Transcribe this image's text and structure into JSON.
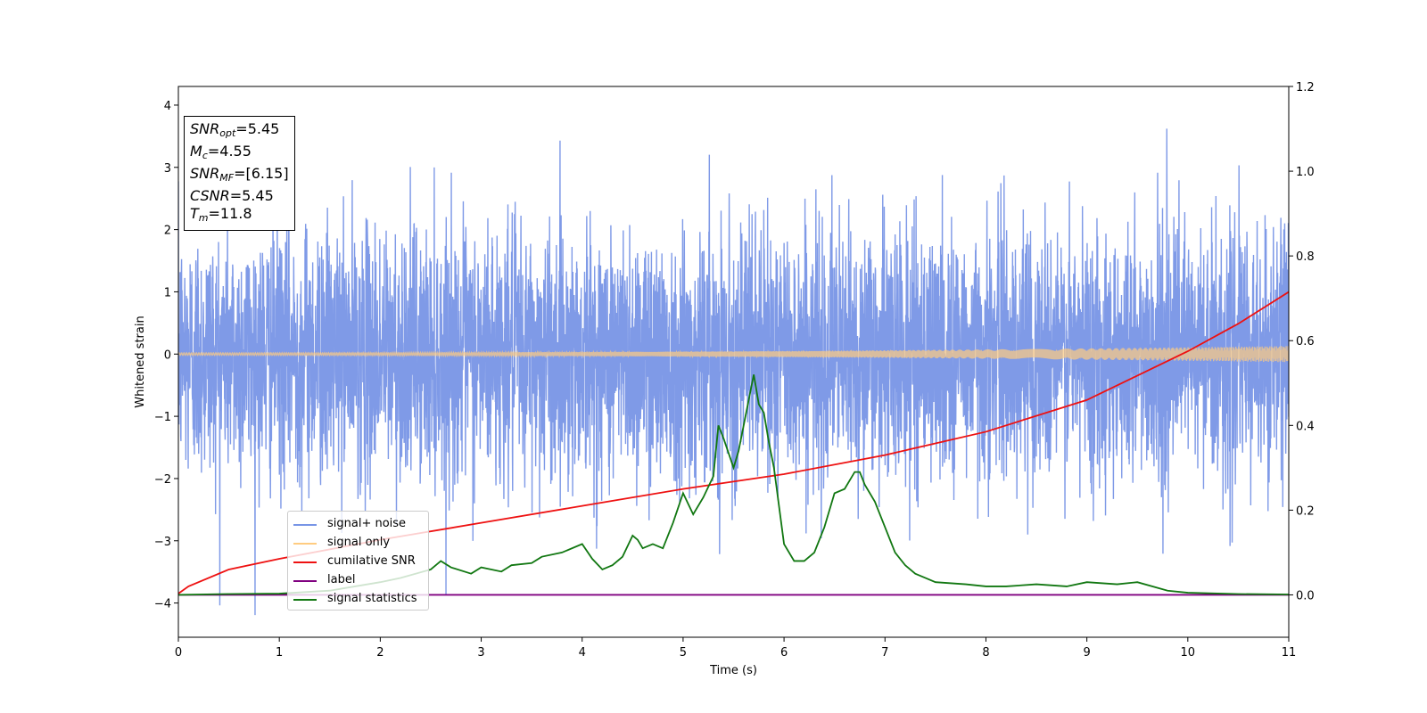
{
  "chart_data": {
    "type": "line",
    "xlabel": "Time (s)",
    "ylabel": "Whitened strain",
    "xlim": [
      0,
      11
    ],
    "ylim": [
      -4.55,
      4.3
    ],
    "y2lim": [
      -0.1,
      1.2
    ],
    "x_ticks": [
      "0",
      "1",
      "2",
      "3",
      "4",
      "5",
      "6",
      "7",
      "8",
      "9",
      "10",
      "11"
    ],
    "y_ticks": [
      "−4",
      "−3",
      "−2",
      "−1",
      "0",
      "1",
      "2",
      "3",
      "4"
    ],
    "y2_ticks": [
      "0.0",
      "0.2",
      "0.4",
      "0.6",
      "0.8",
      "1.0",
      "1.2"
    ],
    "annotation": {
      "snr_opt": {
        "label": "SNR",
        "sub": "opt",
        "value": "=5.45"
      },
      "mc": {
        "label": "M",
        "sub": "c",
        "value": "=4.55"
      },
      "snr_mf": {
        "label": "SNR",
        "sub": "MF",
        "value": "=[6.15]"
      },
      "csnr": {
        "label": "CSNR",
        "value": "=5.45"
      },
      "tm": {
        "label": "T",
        "sub": "m",
        "value": "=11.8"
      }
    },
    "series": [
      {
        "name": "signal+ noise",
        "axis": "left",
        "color": "#7895e6",
        "kind": "noise",
        "spread_sigma": 1.0,
        "peak_max": 3.9,
        "peak_min": -4.2
      },
      {
        "name": "signal only",
        "axis": "left",
        "color": "#ffcc80",
        "kind": "chirp",
        "amplitude_start": 0.02,
        "amplitude_end": 0.13
      },
      {
        "name": "cumilative SNR",
        "axis": "right",
        "color": "#ee1111",
        "x": [
          0,
          0.1,
          0.5,
          1,
          2,
          3,
          4,
          5,
          6,
          7,
          8,
          9,
          10,
          10.5,
          11
        ],
        "y": [
          0.003,
          0.02,
          0.06,
          0.085,
          0.13,
          0.17,
          0.21,
          0.25,
          0.285,
          0.33,
          0.385,
          0.46,
          0.575,
          0.64,
          0.715
        ]
      },
      {
        "name": "label",
        "axis": "right",
        "color": "#800080",
        "x": [
          0,
          11
        ],
        "y": [
          0,
          0
        ]
      },
      {
        "name": "signal statistics",
        "axis": "right",
        "color": "#117711",
        "x": [
          0,
          0.5,
          1,
          1.5,
          2,
          2.2,
          2.5,
          2.6,
          2.7,
          2.9,
          3.0,
          3.2,
          3.3,
          3.5,
          3.6,
          3.8,
          4.0,
          4.1,
          4.2,
          4.3,
          4.4,
          4.5,
          4.55,
          4.6,
          4.7,
          4.8,
          4.9,
          5.0,
          5.1,
          5.2,
          5.3,
          5.35,
          5.4,
          5.5,
          5.55,
          5.6,
          5.7,
          5.75,
          5.8,
          5.85,
          5.9,
          6.0,
          6.1,
          6.2,
          6.3,
          6.4,
          6.5,
          6.6,
          6.7,
          6.75,
          6.8,
          6.9,
          7.0,
          7.1,
          7.2,
          7.3,
          7.4,
          7.5,
          7.8,
          8.0,
          8.2,
          8.5,
          8.8,
          9.0,
          9.3,
          9.5,
          9.8,
          10.0,
          10.5,
          11.0
        ],
        "y": [
          0.0,
          0.002,
          0.003,
          0.01,
          0.03,
          0.04,
          0.06,
          0.08,
          0.065,
          0.05,
          0.065,
          0.055,
          0.07,
          0.075,
          0.09,
          0.1,
          0.12,
          0.085,
          0.06,
          0.07,
          0.09,
          0.14,
          0.13,
          0.11,
          0.12,
          0.11,
          0.17,
          0.24,
          0.19,
          0.23,
          0.28,
          0.4,
          0.37,
          0.3,
          0.34,
          0.4,
          0.52,
          0.45,
          0.43,
          0.36,
          0.3,
          0.12,
          0.08,
          0.08,
          0.1,
          0.16,
          0.24,
          0.25,
          0.29,
          0.29,
          0.26,
          0.22,
          0.16,
          0.1,
          0.07,
          0.05,
          0.04,
          0.03,
          0.025,
          0.02,
          0.02,
          0.025,
          0.02,
          0.03,
          0.025,
          0.03,
          0.01,
          0.005,
          0.002,
          0.001
        ]
      }
    ],
    "legend_position": "lower-left"
  }
}
